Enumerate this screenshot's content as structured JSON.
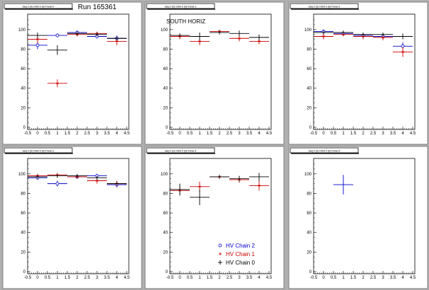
{
  "canvas_header": "Run 165361",
  "chart_data": [
    {
      "type": "scatter",
      "title": "daq 0 (0) Orbit 0 (0) Panel 0",
      "annotation": "",
      "xlim": [
        -0.5,
        4.5
      ],
      "ylim": [
        0,
        110
      ],
      "xticks": [
        "-0.5",
        "0",
        "0.5",
        "1",
        "1.5",
        "2",
        "2.5",
        "3",
        "3.5",
        "4",
        "4.5"
      ],
      "yticks": [
        "0",
        "20",
        "40",
        "60",
        "80",
        "100"
      ],
      "series": [
        {
          "color": "#0000cc",
          "marker": "circle",
          "points": [
            {
              "x": 0,
              "y": 84,
              "xerr": 0.5,
              "yerr": 4
            },
            {
              "x": 1,
              "y": 94,
              "xerr": 0.5,
              "yerr": 2
            },
            {
              "x": 2,
              "y": 97,
              "xerr": 0.5,
              "yerr": 2
            },
            {
              "x": 3,
              "y": 93,
              "xerr": 0.5,
              "yerr": 2
            },
            {
              "x": 4,
              "y": 91,
              "xerr": 0.5,
              "yerr": 3
            }
          ]
        },
        {
          "color": "#cc0000",
          "marker": "star",
          "points": [
            {
              "x": 0,
              "y": 90,
              "xerr": 0.5,
              "yerr": 4
            },
            {
              "x": 1,
              "y": 45,
              "xerr": 0.5,
              "yerr": 4
            },
            {
              "x": 2,
              "y": 95,
              "xerr": 0.5,
              "yerr": 2
            },
            {
              "x": 3,
              "y": 96,
              "xerr": 0.5,
              "yerr": 2
            },
            {
              "x": 4,
              "y": 88,
              "xerr": 0.5,
              "yerr": 4
            }
          ]
        },
        {
          "color": "#000000",
          "marker": "plus",
          "points": [
            {
              "x": 0,
              "y": 94,
              "xerr": 0.5,
              "yerr": 3
            },
            {
              "x": 1,
              "y": 79,
              "xerr": 0.5,
              "yerr": 5
            },
            {
              "x": 2,
              "y": 96,
              "xerr": 0.5,
              "yerr": 2
            },
            {
              "x": 3,
              "y": 95,
              "xerr": 0.5,
              "yerr": 2
            },
            {
              "x": 4,
              "y": 91,
              "xerr": 0.5,
              "yerr": 2
            }
          ]
        }
      ]
    },
    {
      "type": "scatter",
      "title": "daq 0 (0) Orbit 0 (0) Panel 1",
      "annotation": "SOUTH HORIZ",
      "xlim": [
        -0.5,
        4.5
      ],
      "ylim": [
        0,
        110
      ],
      "xticks": [
        "-0.5",
        "0",
        "0.5",
        "1",
        "1.5",
        "2",
        "2.5",
        "3",
        "3.5",
        "4",
        "4.5"
      ],
      "yticks": [
        "0",
        "20",
        "40",
        "60",
        "80",
        "100"
      ],
      "series": [
        {
          "color": "#cc0000",
          "marker": "star",
          "points": [
            {
              "x": 0,
              "y": 93,
              "xerr": 0.5,
              "yerr": 3
            },
            {
              "x": 1,
              "y": 88,
              "xerr": 0.5,
              "yerr": 4
            },
            {
              "x": 2,
              "y": 98,
              "xerr": 0.5,
              "yerr": 2
            },
            {
              "x": 3,
              "y": 91,
              "xerr": 0.5,
              "yerr": 3
            },
            {
              "x": 4,
              "y": 88,
              "xerr": 0.5,
              "yerr": 3
            }
          ]
        },
        {
          "color": "#000000",
          "marker": "plus",
          "points": [
            {
              "x": 0,
              "y": 94,
              "xerr": 0.5,
              "yerr": 2
            },
            {
              "x": 1,
              "y": 93,
              "xerr": 0.5,
              "yerr": 4
            },
            {
              "x": 2,
              "y": 97,
              "xerr": 0.5,
              "yerr": 2
            },
            {
              "x": 3,
              "y": 96,
              "xerr": 0.5,
              "yerr": 3
            },
            {
              "x": 4,
              "y": 92,
              "xerr": 0.5,
              "yerr": 3
            }
          ]
        }
      ]
    },
    {
      "type": "scatter",
      "title": "daq 0 (0) Orbit 0 (0) Panel 2",
      "annotation": "",
      "xlim": [
        -0.5,
        4.5
      ],
      "ylim": [
        0,
        110
      ],
      "xticks": [
        "-0.5",
        "0",
        "0.5",
        "1",
        "1.5",
        "2",
        "2.5",
        "3",
        "3.5",
        "4",
        "4.5"
      ],
      "yticks": [
        "0",
        "20",
        "40",
        "60",
        "80",
        "100"
      ],
      "series": [
        {
          "color": "#0000cc",
          "marker": "circle",
          "points": [
            {
              "x": 0,
              "y": 98,
              "xerr": 0.5,
              "yerr": 2
            },
            {
              "x": 1,
              "y": 96,
              "xerr": 0.5,
              "yerr": 2
            },
            {
              "x": 2,
              "y": 94,
              "xerr": 0.5,
              "yerr": 2
            },
            {
              "x": 3,
              "y": 93,
              "xerr": 0.5,
              "yerr": 3
            },
            {
              "x": 4,
              "y": 83,
              "xerr": 0.5,
              "yerr": 4
            }
          ]
        },
        {
          "color": "#cc0000",
          "marker": "star",
          "points": [
            {
              "x": 0,
              "y": 93,
              "xerr": 0.5,
              "yerr": 3
            },
            {
              "x": 1,
              "y": 95,
              "xerr": 0.5,
              "yerr": 2
            },
            {
              "x": 2,
              "y": 93,
              "xerr": 0.5,
              "yerr": 3
            },
            {
              "x": 3,
              "y": 92,
              "xerr": 0.5,
              "yerr": 3
            },
            {
              "x": 4,
              "y": 77,
              "xerr": 0.5,
              "yerr": 5
            }
          ]
        },
        {
          "color": "#000000",
          "marker": "plus",
          "points": [
            {
              "x": 0,
              "y": 97,
              "xerr": 0.5,
              "yerr": 2
            },
            {
              "x": 1,
              "y": 97,
              "xerr": 0.5,
              "yerr": 2
            },
            {
              "x": 2,
              "y": 95,
              "xerr": 0.5,
              "yerr": 2
            },
            {
              "x": 3,
              "y": 95,
              "xerr": 0.5,
              "yerr": 2
            },
            {
              "x": 4,
              "y": 93,
              "xerr": 0.5,
              "yerr": 3
            }
          ]
        }
      ]
    },
    {
      "type": "scatter",
      "title": "daq 0 (0) Orbit 0 (0) Panel 3",
      "annotation": "",
      "xlim": [
        -0.5,
        4.5
      ],
      "ylim": [
        0,
        110
      ],
      "xticks": [
        "-0.5",
        "0",
        "0.5",
        "1",
        "1.5",
        "2",
        "2.5",
        "3",
        "3.5",
        "4",
        "4.5"
      ],
      "yticks": [
        "0",
        "20",
        "40",
        "60",
        "80",
        "100"
      ],
      "series": [
        {
          "color": "#0000cc",
          "marker": "circle",
          "points": [
            {
              "x": 0,
              "y": 96,
              "xerr": 0.5,
              "yerr": 2
            },
            {
              "x": 1,
              "y": 90,
              "xerr": 0.5,
              "yerr": 3
            },
            {
              "x": 2,
              "y": 97,
              "xerr": 0.5,
              "yerr": 2
            },
            {
              "x": 3,
              "y": 98,
              "xerr": 0.5,
              "yerr": 2
            },
            {
              "x": 4,
              "y": 89,
              "xerr": 0.5,
              "yerr": 3
            }
          ]
        },
        {
          "color": "#cc0000",
          "marker": "star",
          "points": [
            {
              "x": 0,
              "y": 98,
              "xerr": 0.5,
              "yerr": 2
            },
            {
              "x": 1,
              "y": 99,
              "xerr": 0.5,
              "yerr": 2
            },
            {
              "x": 2,
              "y": 97,
              "xerr": 0.5,
              "yerr": 2
            },
            {
              "x": 3,
              "y": 93,
              "xerr": 0.5,
              "yerr": 3
            },
            {
              "x": 4,
              "y": 90,
              "xerr": 0.5,
              "yerr": 3
            }
          ]
        },
        {
          "color": "#000000",
          "marker": "plus",
          "points": [
            {
              "x": 0,
              "y": 97,
              "xerr": 0.5,
              "yerr": 2
            },
            {
              "x": 1,
              "y": 98,
              "xerr": 0.5,
              "yerr": 2
            },
            {
              "x": 2,
              "y": 98,
              "xerr": 0.5,
              "yerr": 2
            },
            {
              "x": 3,
              "y": 96,
              "xerr": 0.5,
              "yerr": 2
            },
            {
              "x": 4,
              "y": 90,
              "xerr": 0.5,
              "yerr": 2
            }
          ]
        }
      ]
    },
    {
      "type": "scatter",
      "title": "daq 0 (0) Orbit 0 (0) Panel 4",
      "annotation": "",
      "xlim": [
        -0.5,
        4.5
      ],
      "ylim": [
        0,
        110
      ],
      "xticks": [
        "-0.5",
        "0",
        "0.5",
        "1",
        "1.5",
        "2",
        "2.5",
        "3",
        "3.5",
        "4",
        "4.5"
      ],
      "yticks": [
        "0",
        "20",
        "40",
        "60",
        "80",
        "100"
      ],
      "legend": {
        "position": "bottom-right",
        "entries": [
          {
            "label": "HV Chain 2",
            "color": "#0000cc",
            "marker": "circle"
          },
          {
            "label": "HV Chain 1",
            "color": "#cc0000",
            "marker": "star"
          },
          {
            "label": "HV Chain 0",
            "color": "#000000",
            "marker": "plus"
          }
        ]
      },
      "series": [
        {
          "color": "#cc0000",
          "marker": "star",
          "points": [
            {
              "x": 0,
              "y": 83,
              "xerr": 0.5,
              "yerr": 5
            },
            {
              "x": 1,
              "y": 87,
              "xerr": 0.5,
              "yerr": 5
            },
            {
              "x": 2,
              "y": 97,
              "xerr": 0.5,
              "yerr": 2
            },
            {
              "x": 3,
              "y": 94,
              "xerr": 0.5,
              "yerr": 3
            },
            {
              "x": 4,
              "y": 88,
              "xerr": 0.5,
              "yerr": 5
            }
          ]
        },
        {
          "color": "#000000",
          "marker": "plus",
          "points": [
            {
              "x": 0,
              "y": 84,
              "xerr": 0.5,
              "yerr": 6
            },
            {
              "x": 1,
              "y": 76,
              "xerr": 0.5,
              "yerr": 8
            },
            {
              "x": 2,
              "y": 97,
              "xerr": 0.5,
              "yerr": 2
            },
            {
              "x": 3,
              "y": 95,
              "xerr": 0.5,
              "yerr": 3
            },
            {
              "x": 4,
              "y": 97,
              "xerr": 0.5,
              "yerr": 4
            }
          ]
        }
      ]
    },
    {
      "type": "scatter",
      "title": "daq 0 (0) Orbit 0 (0) Panel 5",
      "annotation": "",
      "xlim": [
        -0.5,
        4.5
      ],
      "ylim": [
        0,
        110
      ],
      "xticks": [
        "-0.5",
        "0",
        "0.5",
        "1",
        "1.5",
        "2",
        "2.5",
        "3",
        "3.5",
        "4",
        "4.5"
      ],
      "yticks": [
        "0",
        "20",
        "40",
        "60",
        "80",
        "100"
      ],
      "series": [
        {
          "color": "#0000cc",
          "marker": "plus",
          "points": [
            {
              "x": 1,
              "y": 89,
              "xerr": 0.5,
              "yerr": 10
            }
          ]
        }
      ]
    }
  ]
}
